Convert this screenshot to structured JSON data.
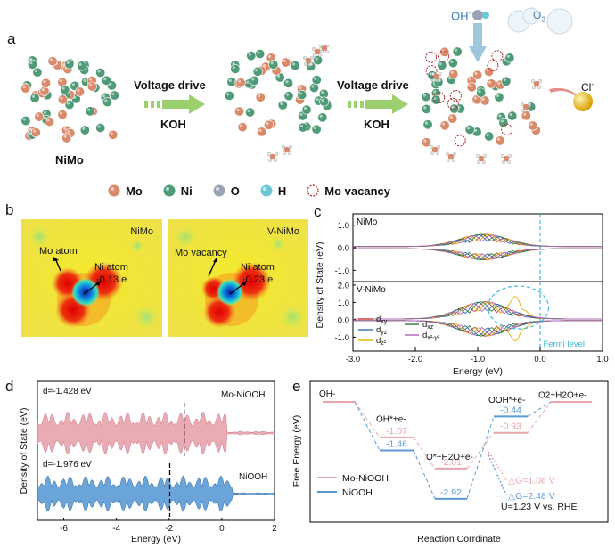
{
  "panel_labels": {
    "a": "a",
    "b": "b",
    "c": "c",
    "d": "d",
    "e": "e"
  },
  "panel_a": {
    "step1": {
      "label": "Voltage drive",
      "electrolyte": "KOH"
    },
    "step2": {
      "label": "Voltage drive",
      "electrolyte": "KOH"
    },
    "material_label": "NiMo",
    "oh_label": "OH",
    "o2_label": "O",
    "o2_sub": "2",
    "cl_label": "Cl",
    "legend": [
      {
        "label": "Mo",
        "color": "#d98a6b"
      },
      {
        "label": "Ni",
        "color": "#4f9a77"
      },
      {
        "label": "O",
        "color": "#9aa3b5"
      },
      {
        "label": "H",
        "color": "#6fc7d6"
      },
      {
        "label": "Mo vacancy",
        "color": "#b22222"
      }
    ]
  },
  "panel_b": {
    "left": {
      "title": "NiMo",
      "atom1": "Mo atom",
      "atom2": "Ni atom",
      "charge": "-0.13 e"
    },
    "right": {
      "title": "V-NiMo",
      "atom1": "Mo vacancy",
      "atom2": "Ni atom",
      "charge": "-0.23 e"
    }
  },
  "chart_data": [
    {
      "type": "line",
      "panel": "c",
      "title": "",
      "xlabel": "Energy (eV)",
      "ylabel": "Density of State (eV)",
      "xlim": [
        -3.0,
        1.0
      ],
      "xticks": [
        "-3.0",
        "-2.0",
        "-1.0",
        "0.0",
        "1.0"
      ],
      "subplots": [
        {
          "name": "NiMo",
          "ylim": [
            -1.5,
            1.5
          ],
          "yticks": [
            "1.0",
            "0.0",
            "-1.0"
          ]
        },
        {
          "name": "V-NiMo",
          "ylim": [
            -1.8,
            2.2
          ],
          "yticks": [
            "2.0",
            "1.0",
            "0.0",
            "-1.0"
          ]
        }
      ],
      "series": [
        {
          "name": "d_xy",
          "color": "#c0392b"
        },
        {
          "name": "d_yz",
          "color": "#2c6fb7"
        },
        {
          "name": "d_z²",
          "color": "#e0b000"
        },
        {
          "name": "d_xz",
          "color": "#2e7d32"
        },
        {
          "name": "d_x²-y²",
          "color": "#b05fc0"
        }
      ],
      "annotation": "Fermi level",
      "fermi_level": 0.0
    },
    {
      "type": "area",
      "panel": "d",
      "xlabel": "Energy (eV)",
      "ylabel": "Density of State (eV)",
      "xlim": [
        -7,
        2
      ],
      "xticks": [
        "-6",
        "-4",
        "-2",
        "0",
        "2"
      ],
      "series": [
        {
          "name": "Mo-NiOOH",
          "d_center": -1.428,
          "d_label": "d=-1.428 eV",
          "color": "#e8a4ac"
        },
        {
          "name": "NiOOH",
          "d_center": -1.976,
          "d_label": "d=-1.976 eV",
          "color": "#5b9bd5"
        }
      ]
    },
    {
      "type": "line",
      "panel": "e",
      "xlabel": "Reaction Corrdinate",
      "ylabel": "Free Energy (eV)",
      "steps": [
        "OH⁻",
        "OH*+e⁻",
        "O*+H₂O+e⁻",
        "OOH*+e⁻",
        "O₂+H₂O+e⁻"
      ],
      "step_labels": [
        "OH-",
        "OH*+e-",
        "O*+H2O+e-",
        "OOH*+e-",
        "O2+H2O+e-"
      ],
      "series": [
        {
          "name": "Mo-NiOOH",
          "color": "#e8a4ac",
          "values": [
            0,
            -1.07,
            -2.01,
            -0.93,
            0
          ],
          "labels": [
            "",
            "-1.07",
            "-2.01",
            "-0.93",
            ""
          ]
        },
        {
          "name": "NiOOH",
          "color": "#5b9bd5",
          "values": [
            0,
            -1.46,
            -2.92,
            -0.44,
            0
          ],
          "labels": [
            "",
            "-1.46",
            "-2.92",
            "-0.44",
            ""
          ]
        }
      ],
      "annotations": [
        "△G=1.08 V",
        "△G=2.48 V"
      ],
      "condition": "U=1.23 V vs. RHE"
    }
  ]
}
